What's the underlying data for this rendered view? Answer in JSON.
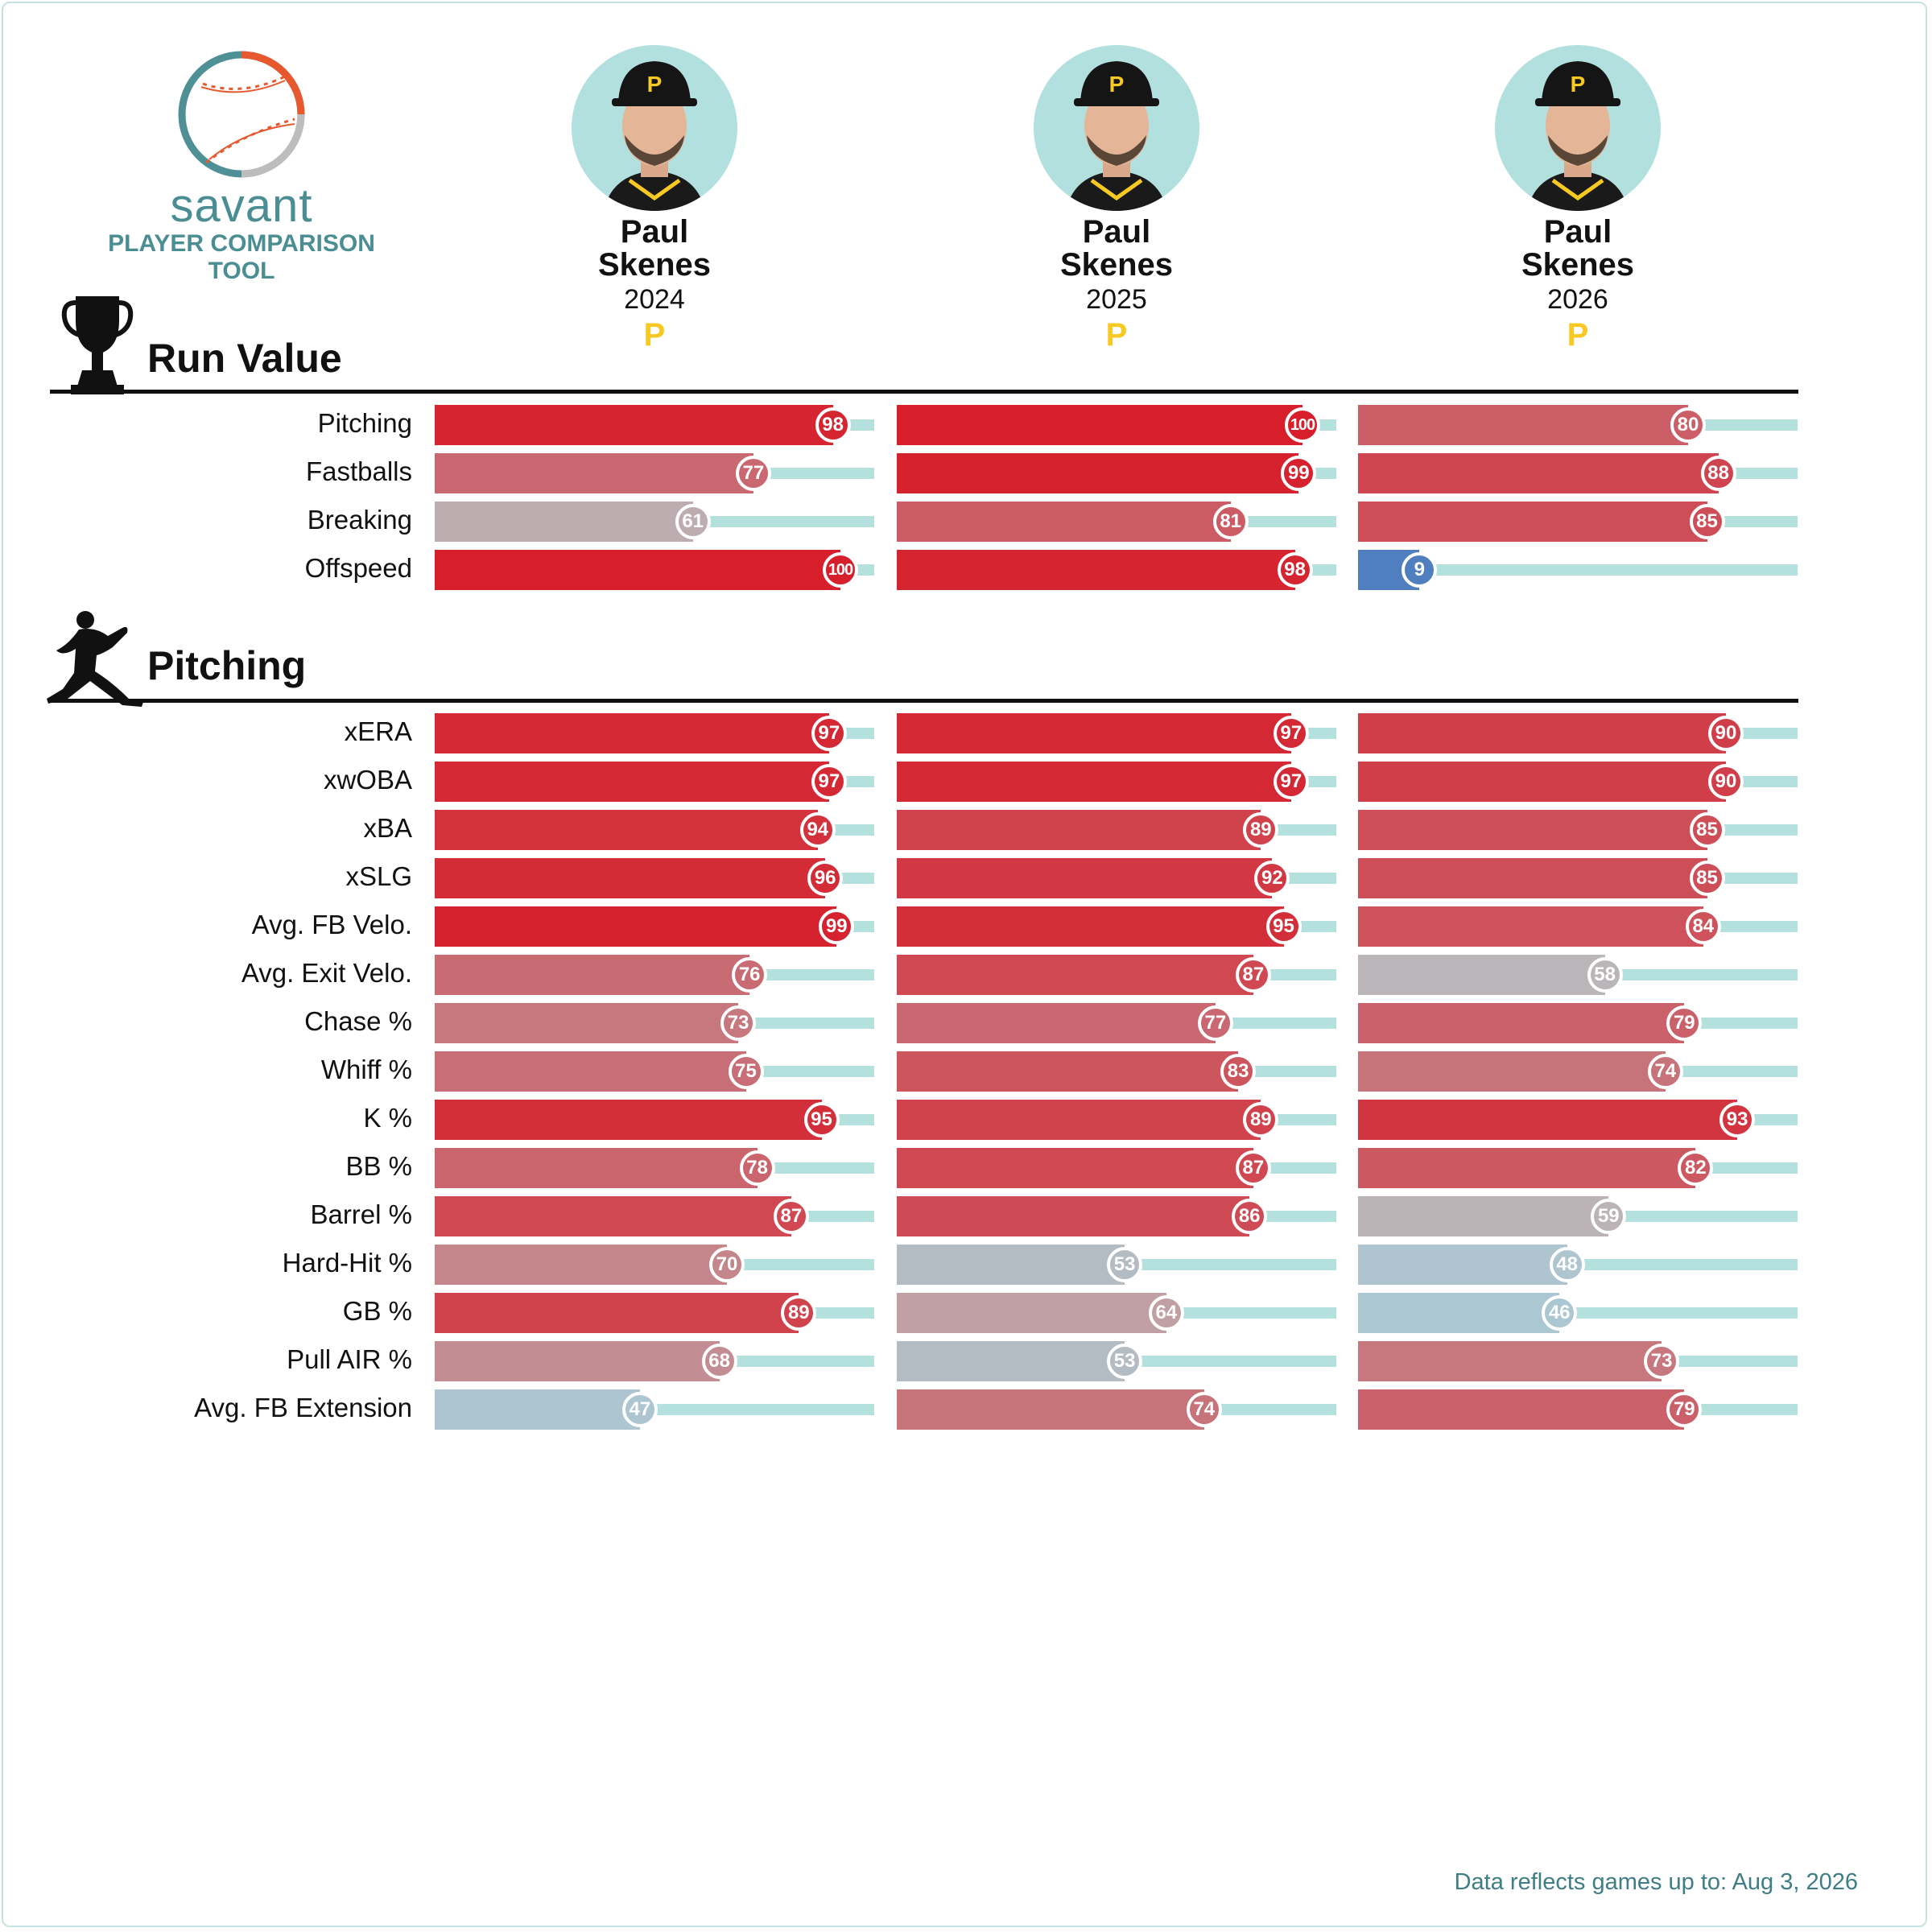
{
  "brand": {
    "name": "savant",
    "subtitle": "PLAYER COMPARISON TOOL"
  },
  "players": [
    {
      "first": "Paul",
      "last": "Skenes",
      "year": "2024",
      "team_logo": "P"
    },
    {
      "first": "Paul",
      "last": "Skenes",
      "year": "2025",
      "team_logo": "P"
    },
    {
      "first": "Paul",
      "last": "Skenes",
      "year": "2026",
      "team_logo": "P"
    }
  ],
  "sections": [
    {
      "title": "Run Value",
      "icon": "trophy-icon",
      "rows": [
        {
          "label": "Pitching",
          "values": [
            98,
            100,
            80
          ]
        },
        {
          "label": "Fastballs",
          "values": [
            77,
            99,
            88
          ]
        },
        {
          "label": "Breaking",
          "values": [
            61,
            81,
            85
          ]
        },
        {
          "label": "Offspeed",
          "values": [
            100,
            98,
            9
          ]
        }
      ]
    },
    {
      "title": "Pitching",
      "icon": "pitcher-icon",
      "rows": [
        {
          "label": "xERA",
          "values": [
            97,
            97,
            90
          ]
        },
        {
          "label": "xwOBA",
          "values": [
            97,
            97,
            90
          ]
        },
        {
          "label": "xBA",
          "values": [
            94,
            89,
            85
          ]
        },
        {
          "label": "xSLG",
          "values": [
            96,
            92,
            85
          ]
        },
        {
          "label": "Avg. FB Velo.",
          "values": [
            99,
            95,
            84
          ]
        },
        {
          "label": "Avg. Exit Velo.",
          "values": [
            76,
            87,
            58
          ]
        },
        {
          "label": "Chase %",
          "values": [
            73,
            77,
            79
          ]
        },
        {
          "label": "Whiff %",
          "values": [
            75,
            83,
            74
          ]
        },
        {
          "label": "K %",
          "values": [
            95,
            89,
            93
          ]
        },
        {
          "label": "BB %",
          "values": [
            78,
            87,
            82
          ]
        },
        {
          "label": "Barrel %",
          "values": [
            87,
            86,
            59
          ]
        },
        {
          "label": "Hard-Hit %",
          "values": [
            70,
            53,
            48
          ]
        },
        {
          "label": "GB %",
          "values": [
            89,
            64,
            46
          ]
        },
        {
          "label": "Pull AIR %",
          "values": [
            68,
            53,
            73
          ]
        },
        {
          "label": "Avg. FB Extension",
          "values": [
            47,
            74,
            79
          ]
        }
      ]
    }
  ],
  "chart_data": {
    "type": "bar",
    "orientation": "horizontal",
    "value_range": [
      0,
      100
    ],
    "series": [
      {
        "name": "2024",
        "categories": [
          "Pitching",
          "Fastballs",
          "Breaking",
          "Offspeed",
          "xERA",
          "xwOBA",
          "xBA",
          "xSLG",
          "Avg. FB Velo.",
          "Avg. Exit Velo.",
          "Chase %",
          "Whiff %",
          "K %",
          "BB %",
          "Barrel %",
          "Hard-Hit %",
          "GB %",
          "Pull AIR %",
          "Avg. FB Extension"
        ],
        "values": [
          98,
          77,
          61,
          100,
          97,
          97,
          94,
          96,
          99,
          76,
          73,
          75,
          95,
          78,
          87,
          70,
          89,
          68,
          47
        ]
      },
      {
        "name": "2025",
        "categories": [
          "Pitching",
          "Fastballs",
          "Breaking",
          "Offspeed",
          "xERA",
          "xwOBA",
          "xBA",
          "xSLG",
          "Avg. FB Velo.",
          "Avg. Exit Velo.",
          "Chase %",
          "Whiff %",
          "K %",
          "BB %",
          "Barrel %",
          "Hard-Hit %",
          "GB %",
          "Pull AIR %",
          "Avg. FB Extension"
        ],
        "values": [
          100,
          99,
          81,
          98,
          97,
          97,
          89,
          92,
          95,
          87,
          77,
          83,
          89,
          87,
          86,
          53,
          64,
          53,
          74
        ]
      },
      {
        "name": "2026",
        "categories": [
          "Pitching",
          "Fastballs",
          "Breaking",
          "Offspeed",
          "xERA",
          "xwOBA",
          "xBA",
          "xSLG",
          "Avg. FB Velo.",
          "Avg. Exit Velo.",
          "Chase %",
          "Whiff %",
          "K %",
          "BB %",
          "Barrel %",
          "Hard-Hit %",
          "GB %",
          "Pull AIR %",
          "Avg. FB Extension"
        ],
        "values": [
          80,
          88,
          85,
          9,
          90,
          90,
          85,
          85,
          84,
          58,
          79,
          74,
          93,
          82,
          59,
          48,
          46,
          73,
          79
        ]
      }
    ],
    "colors": {
      "high": "#d41f2b",
      "mid": "#bdb2b4",
      "low": "#3a6dba",
      "track": "#b4e0de"
    }
  },
  "footer": {
    "prefix": "Data reflects games up to:",
    "date": "Aug 3, 2026"
  }
}
